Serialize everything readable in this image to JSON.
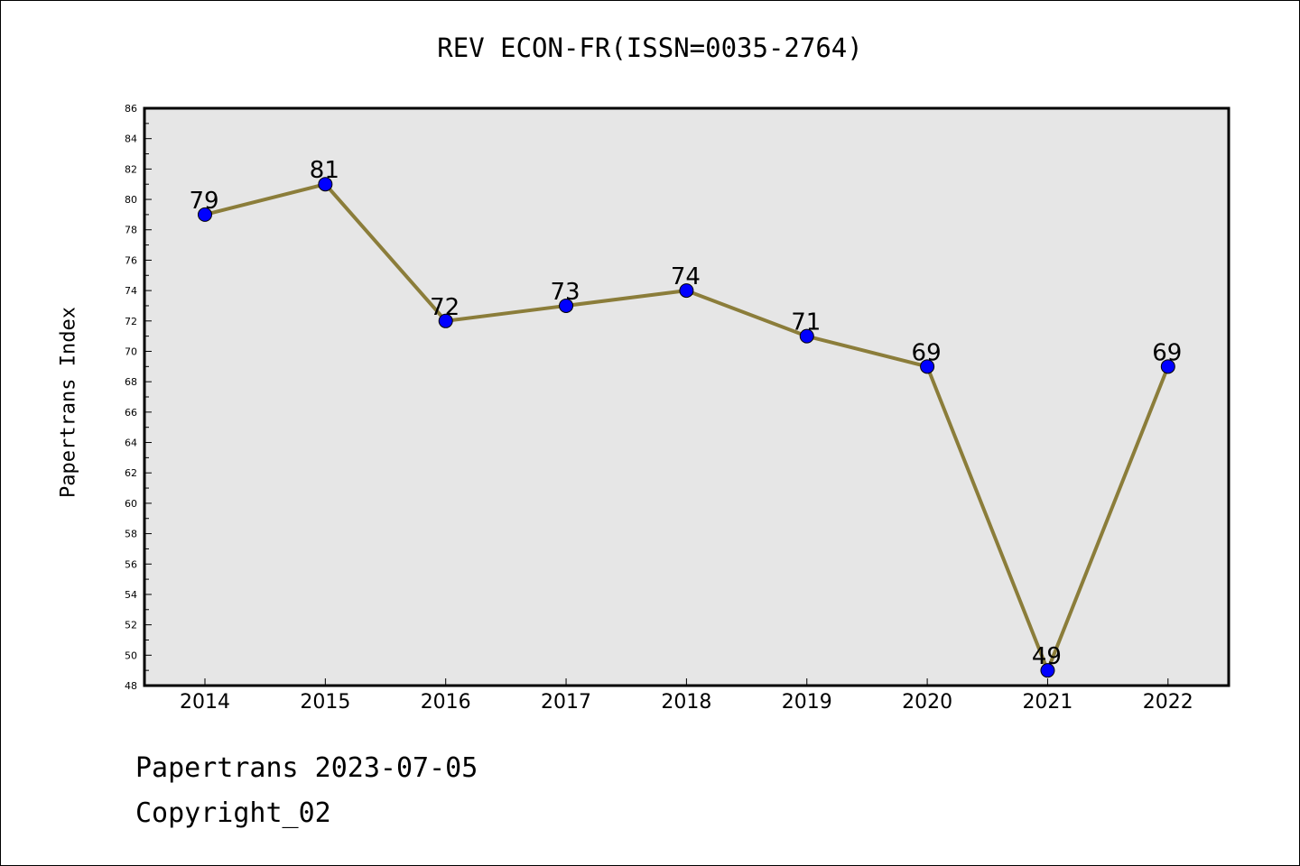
{
  "chart_data": {
    "type": "line",
    "title": "REV ECON-FR(ISSN=0035-2764)",
    "ylabel": "Papertrans Index",
    "xlabel": "",
    "categories": [
      "2014",
      "2015",
      "2016",
      "2017",
      "2018",
      "2019",
      "2020",
      "2021",
      "2022"
    ],
    "series": [
      {
        "values": [
          79,
          81,
          72,
          73,
          74,
          71,
          69,
          49,
          69
        ]
      }
    ],
    "data_labels": [
      "79",
      "81",
      "72",
      "73",
      "74",
      "71",
      "69",
      "49",
      "69"
    ],
    "ylim": [
      48,
      86
    ],
    "yticks": [
      "48",
      "50",
      "52",
      "54",
      "56",
      "58",
      "60",
      "62",
      "64",
      "66",
      "68",
      "70",
      "72",
      "74",
      "76",
      "78",
      "80",
      "82",
      "84",
      "86"
    ],
    "grid": false,
    "colors": {
      "plot_background": "#e6e6e6",
      "line": "#8b7d3a",
      "marker": "#0000ff"
    }
  },
  "footer": {
    "line1": "Papertrans 2023-07-05",
    "line2": "Copyright_02"
  }
}
